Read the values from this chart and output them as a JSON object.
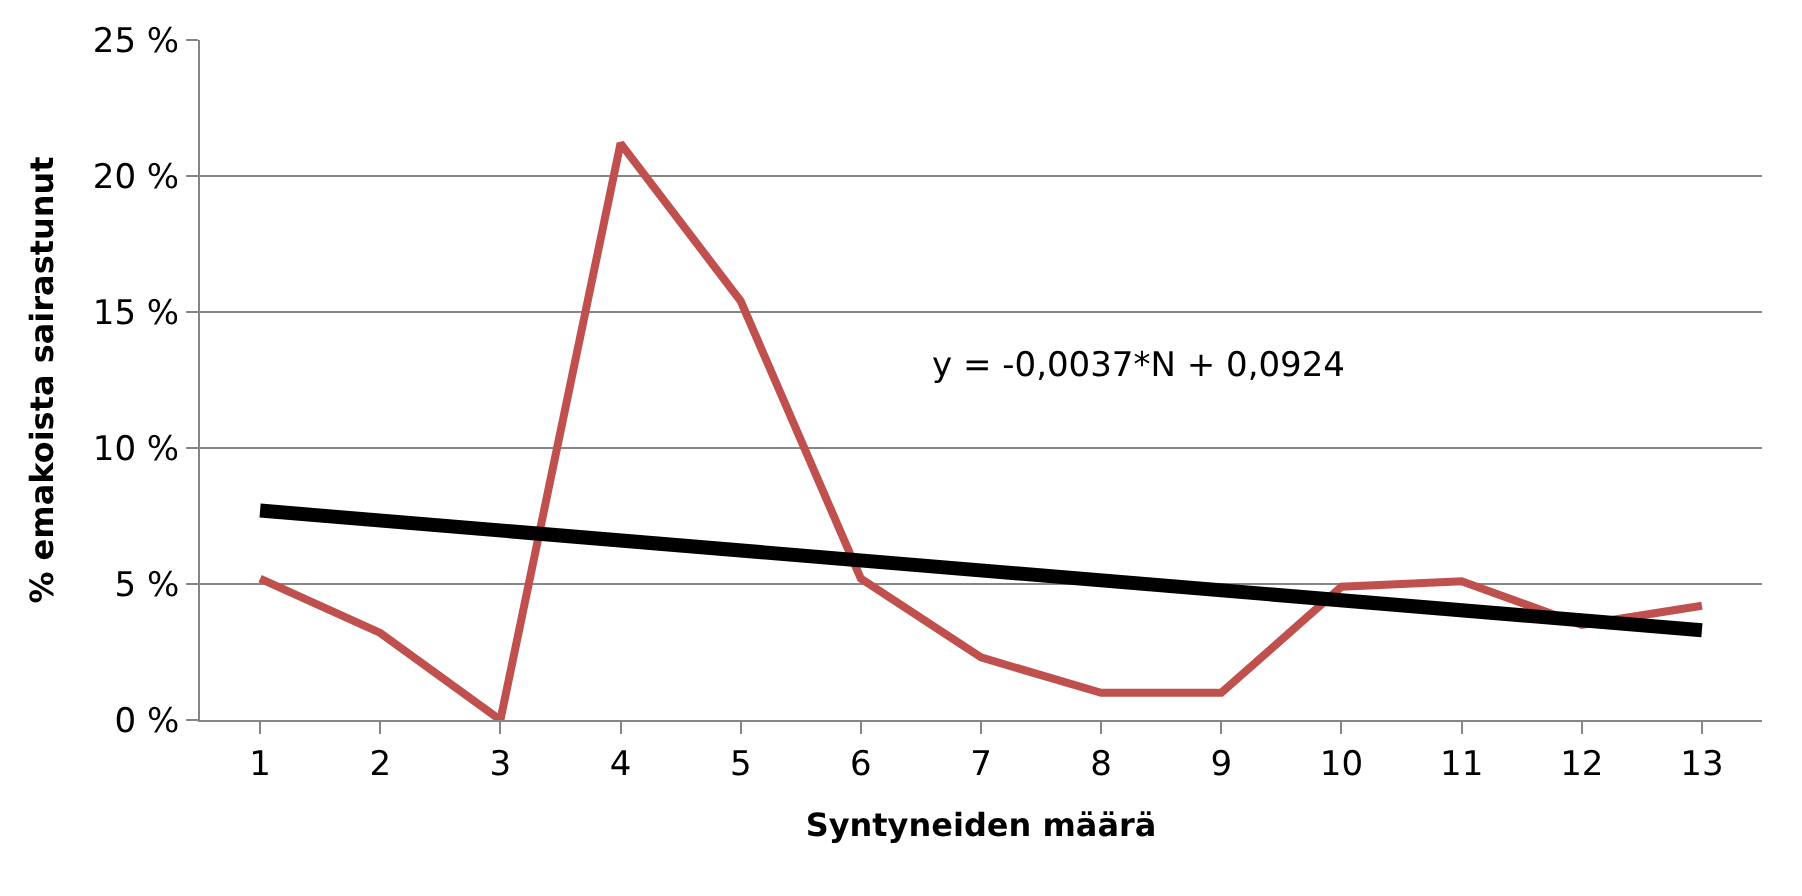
{
  "chart_data": {
    "type": "line",
    "xlabel": "Syntyneiden määrä",
    "ylabel": "% emakoista sairastunut",
    "x": [
      1,
      2,
      3,
      4,
      5,
      6,
      7,
      8,
      9,
      10,
      11,
      12,
      13
    ],
    "series": [
      {
        "color": "#c0504d",
        "values": [
          5.2,
          3.2,
          0,
          21.2,
          15.4,
          5.2,
          2.3,
          1.0,
          1.0,
          4.9,
          5.1,
          3.5,
          4.2
        ]
      },
      {
        "type": "line",
        "color": "#000000",
        "x": [
          1,
          13
        ],
        "values": [
          7.7,
          3.3
        ]
      }
    ],
    "xlim": [
      0.5,
      13.5
    ],
    "xticks": [
      1,
      2,
      3,
      4,
      5,
      6,
      7,
      8,
      9,
      10,
      11,
      12,
      13
    ],
    "ylim": [
      0,
      25
    ],
    "yticks": [
      {
        "value": 0,
        "label": "0 %"
      },
      {
        "value": 5,
        "label": "5 %"
      },
      {
        "value": 10,
        "label": "10 %"
      },
      {
        "value": 15,
        "label": "15 %"
      },
      {
        "value": 20,
        "label": "20 %"
      },
      {
        "value": 25,
        "label": "25 %"
      }
    ],
    "annotations": [
      "y = -0,0037*N + 0,0924"
    ],
    "grid": "y",
    "marker": "none",
    "line_style": "solid"
  }
}
